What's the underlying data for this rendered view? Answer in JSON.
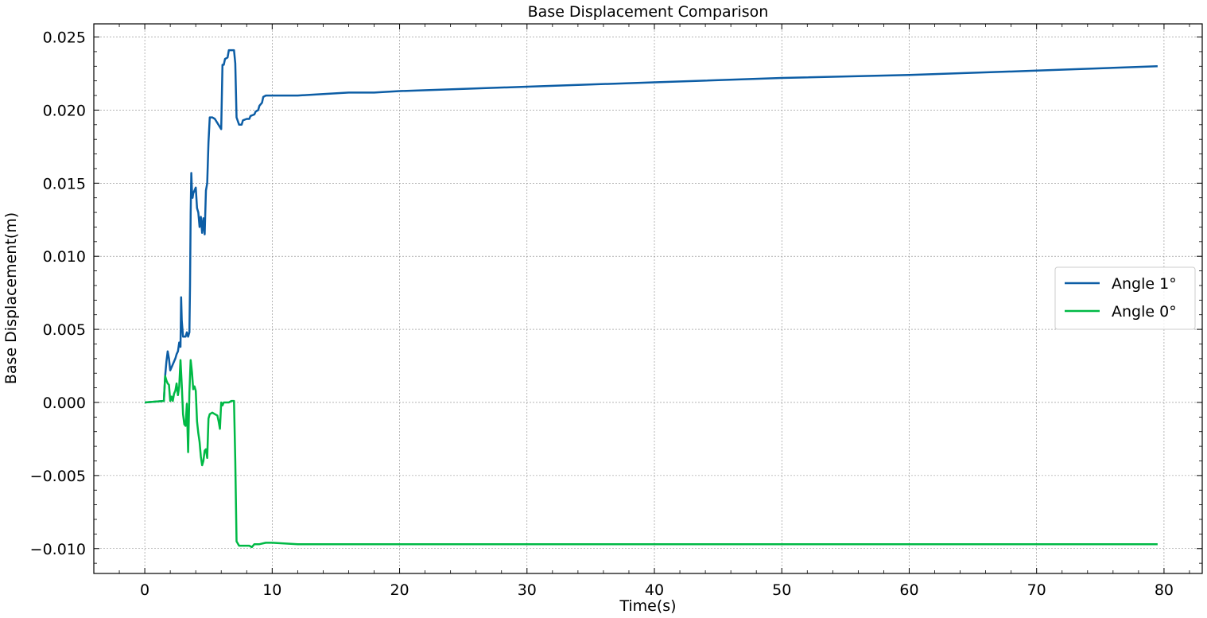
{
  "chart_data": {
    "type": "line",
    "title": "Base Displacement Comparison",
    "xlabel": "Time(s)",
    "ylabel": "Base Displacement(m)",
    "xlim": [
      -4,
      83
    ],
    "ylim": [
      -0.0117,
      0.0259
    ],
    "xticks": [
      0,
      10,
      20,
      30,
      40,
      50,
      60,
      70,
      80
    ],
    "xtick_labels": [
      "0",
      "10",
      "20",
      "30",
      "40",
      "50",
      "60",
      "70",
      "80"
    ],
    "yticks": [
      -0.01,
      -0.005,
      0.0,
      0.005,
      0.01,
      0.015,
      0.02,
      0.025
    ],
    "ytick_labels": [
      "−0.010",
      "−0.005",
      "0.000",
      "0.005",
      "0.010",
      "0.015",
      "0.020",
      "0.025"
    ],
    "grid": true,
    "legend_position": "center-right",
    "series": [
      {
        "name": "Angle 1°",
        "color": "#0C5DA5",
        "x": [
          0,
          1.5,
          1.6,
          1.7,
          1.8,
          1.9,
          2.0,
          2.2,
          2.4,
          2.5,
          2.6,
          2.7,
          2.8,
          2.85,
          2.9,
          3.0,
          3.2,
          3.3,
          3.4,
          3.5,
          3.55,
          3.6,
          3.65,
          3.7,
          3.75,
          3.8,
          4.0,
          4.1,
          4.2,
          4.3,
          4.4,
          4.5,
          4.6,
          4.7,
          4.8,
          4.9,
          5.0,
          5.1,
          5.2,
          5.3,
          5.5,
          6.0,
          6.1,
          6.2,
          6.3,
          6.5,
          6.6,
          6.8,
          7.0,
          7.1,
          7.2,
          7.4,
          7.6,
          7.7,
          8.0,
          8.2,
          8.3,
          8.6,
          8.7,
          8.9,
          9.0,
          9.2,
          9.3,
          9.5,
          10,
          12,
          14,
          16,
          18,
          20,
          30,
          40,
          50,
          60,
          70,
          79.5
        ],
        "y": [
          0.0,
          0.0001,
          0.0018,
          0.0028,
          0.0035,
          0.003,
          0.0022,
          0.0026,
          0.003,
          0.0033,
          0.0035,
          0.0041,
          0.0038,
          0.0072,
          0.0056,
          0.0045,
          0.0045,
          0.0048,
          0.0045,
          0.0048,
          0.008,
          0.013,
          0.0157,
          0.0145,
          0.014,
          0.0143,
          0.0147,
          0.0133,
          0.013,
          0.012,
          0.0127,
          0.0116,
          0.0126,
          0.0115,
          0.0145,
          0.015,
          0.0178,
          0.0195,
          0.0195,
          0.0195,
          0.0194,
          0.0187,
          0.0231,
          0.0231,
          0.0235,
          0.0236,
          0.0241,
          0.0241,
          0.0241,
          0.0232,
          0.0195,
          0.019,
          0.019,
          0.0193,
          0.0194,
          0.0194,
          0.0196,
          0.0197,
          0.0199,
          0.02,
          0.0203,
          0.0205,
          0.0209,
          0.021,
          0.021,
          0.021,
          0.0211,
          0.0212,
          0.0212,
          0.0213,
          0.0216,
          0.0219,
          0.0222,
          0.0224,
          0.0227,
          0.023
        ]
      },
      {
        "name": "Angle 0°",
        "color": "#00B945",
        "x": [
          0,
          1.5,
          1.6,
          1.7,
          1.8,
          1.9,
          2.0,
          2.1,
          2.2,
          2.3,
          2.4,
          2.5,
          2.6,
          2.7,
          2.8,
          2.9,
          3.0,
          3.1,
          3.2,
          3.3,
          3.4,
          3.5,
          3.6,
          3.7,
          3.8,
          3.9,
          4.0,
          4.1,
          4.2,
          4.3,
          4.4,
          4.5,
          4.6,
          4.7,
          4.8,
          4.9,
          5.0,
          5.1,
          5.3,
          5.5,
          5.7,
          5.8,
          5.9,
          6.0,
          6.1,
          6.2,
          6.4,
          6.6,
          6.8,
          7.0,
          7.1,
          7.2,
          7.4,
          7.6,
          8.0,
          8.2,
          8.4,
          8.6,
          9.0,
          9.5,
          10,
          12,
          14,
          16,
          18,
          20,
          30,
          40,
          50,
          60,
          70,
          79.5
        ],
        "y": [
          0.0,
          0.0001,
          0.0018,
          0.0015,
          0.0013,
          0.0012,
          0.0001,
          0.0004,
          0.0001,
          0.0006,
          0.0008,
          0.0013,
          0.0005,
          0.0011,
          0.0029,
          0.0012,
          -0.0008,
          -0.0015,
          -0.0016,
          -0.0001,
          -0.0034,
          0.0007,
          0.0029,
          0.0021,
          0.0009,
          0.0011,
          0.0008,
          -0.0013,
          -0.0021,
          -0.0027,
          -0.0037,
          -0.0043,
          -0.004,
          -0.0033,
          -0.0032,
          -0.0038,
          -0.0011,
          -0.0008,
          -0.0007,
          -0.0008,
          -0.0009,
          -0.0013,
          -0.0018,
          0.0,
          -0.0002,
          0.0,
          0.0,
          0.0,
          0.0001,
          0.0001,
          -0.004,
          -0.0095,
          -0.0098,
          -0.0098,
          -0.0098,
          -0.0098,
          -0.0099,
          -0.0097,
          -0.0097,
          -0.0096,
          -0.0096,
          -0.0097,
          -0.0097,
          -0.0097,
          -0.0097,
          -0.0097,
          -0.0097,
          -0.0097,
          -0.0097,
          -0.0097,
          -0.0097,
          -0.0097
        ]
      }
    ]
  }
}
